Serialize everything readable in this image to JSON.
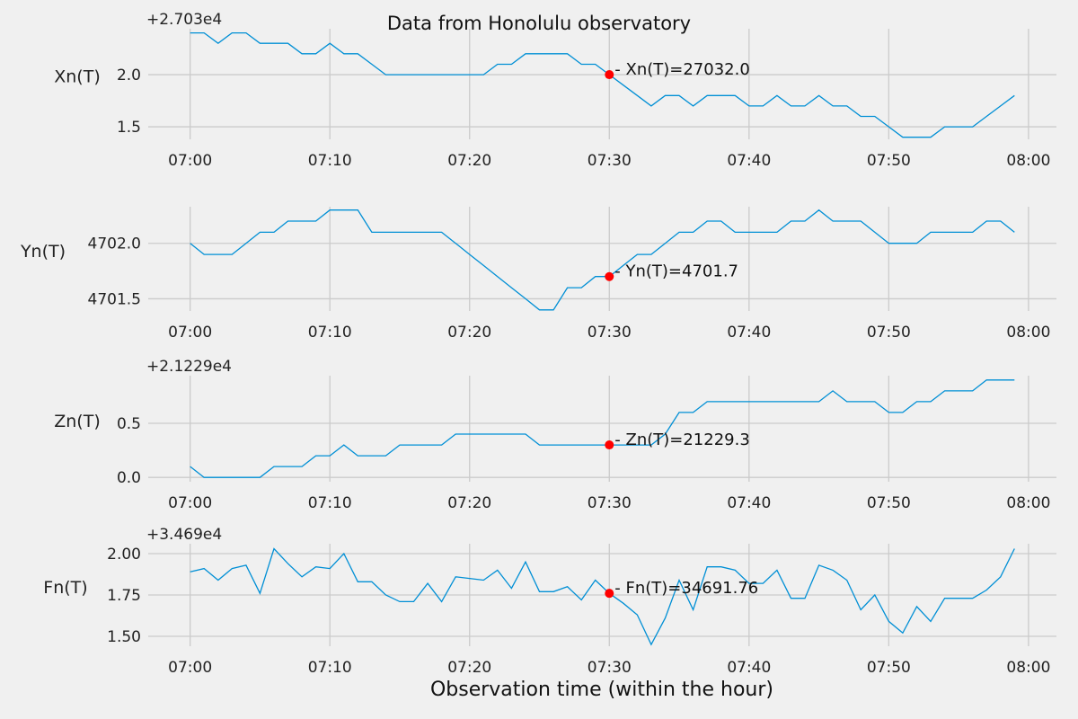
{
  "title": "Data from  Honolulu observatory",
  "chart_data": {
    "type": "line",
    "title": "Data from  Honolulu observatory",
    "xlabel": "Observation time (within the hour)",
    "x_unit": "minutes past 07:00",
    "x_ticks": [
      0,
      10,
      20,
      30,
      40,
      50,
      60
    ],
    "x_tick_labels": [
      "07:00",
      "07:10",
      "07:20",
      "07:30",
      "07:40",
      "07:50",
      "08:00"
    ],
    "xlim": [
      -3,
      62
    ],
    "x": [
      0,
      1,
      2,
      3,
      4,
      5,
      6,
      7,
      8,
      9,
      10,
      11,
      12,
      13,
      14,
      15,
      16,
      17,
      18,
      19,
      20,
      21,
      22,
      23,
      24,
      25,
      26,
      27,
      28,
      29,
      30,
      31,
      32,
      33,
      34,
      35,
      36,
      37,
      38,
      39,
      40,
      41,
      42,
      43,
      44,
      45,
      46,
      47,
      48,
      49,
      50,
      51,
      52,
      53,
      54,
      55,
      56,
      57,
      58,
      59
    ],
    "marker_x": 30,
    "grid": true,
    "panels": [
      {
        "ylabel": "Xn(T)",
        "offset_label": "+2.703e4",
        "offset": 27030,
        "ylim": [
          1.38,
          2.44
        ],
        "y_ticks": [
          1.5,
          2.0
        ],
        "y_tick_labels": [
          "1.5",
          "2.0"
        ],
        "values": [
          2.4,
          2.4,
          2.3,
          2.4,
          2.4,
          2.3,
          2.3,
          2.3,
          2.2,
          2.2,
          2.3,
          2.2,
          2.2,
          2.1,
          2.0,
          2.0,
          2.0,
          2.0,
          2.0,
          2.0,
          2.0,
          2.0,
          2.1,
          2.1,
          2.2,
          2.2,
          2.2,
          2.2,
          2.1,
          2.1,
          2.0,
          1.9,
          1.8,
          1.7,
          1.8,
          1.8,
          1.7,
          1.8,
          1.8,
          1.8,
          1.7,
          1.7,
          1.8,
          1.7,
          1.7,
          1.8,
          1.7,
          1.7,
          1.6,
          1.6,
          1.5,
          1.4,
          1.4,
          1.4,
          1.5,
          1.5,
          1.5,
          1.6,
          1.7,
          1.8
        ],
        "marker_value": 2.0,
        "annotation": "- Xn(T)=27032.0"
      },
      {
        "ylabel": "Yn(T)",
        "offset_label": "",
        "offset": 0,
        "ylim": [
          4701.39,
          4702.33
        ],
        "y_ticks": [
          4701.5,
          4702.0
        ],
        "y_tick_labels": [
          "4701.5",
          "4702.0"
        ],
        "values": [
          4702.0,
          4701.9,
          4701.9,
          4701.9,
          4702.0,
          4702.1,
          4702.1,
          4702.2,
          4702.2,
          4702.2,
          4702.3,
          4702.3,
          4702.3,
          4702.1,
          4702.1,
          4702.1,
          4702.1,
          4702.1,
          4702.1,
          4702.0,
          4701.9,
          4701.8,
          4701.7,
          4701.6,
          4701.5,
          4701.4,
          4701.4,
          4701.6,
          4701.6,
          4701.7,
          4701.7,
          4701.8,
          4701.9,
          4701.9,
          4702.0,
          4702.1,
          4702.1,
          4702.2,
          4702.2,
          4702.1,
          4702.1,
          4702.1,
          4702.1,
          4702.2,
          4702.2,
          4702.3,
          4702.2,
          4702.2,
          4702.2,
          4702.1,
          4702.0,
          4702.0,
          4702.0,
          4702.1,
          4702.1,
          4702.1,
          4702.1,
          4702.2,
          4702.2,
          4702.1
        ],
        "marker_value": 4701.7,
        "annotation": "- Yn(T)=4701.7"
      },
      {
        "ylabel": "Zn(T)",
        "offset_label": "+2.1229e4",
        "offset": 21229,
        "ylim": [
          -0.04,
          0.94
        ],
        "y_ticks": [
          0.0,
          0.5
        ],
        "y_tick_labels": [
          "0.0",
          "0.5"
        ],
        "values": [
          0.1,
          0.0,
          0.0,
          0.0,
          0.0,
          0.0,
          0.1,
          0.1,
          0.1,
          0.2,
          0.2,
          0.3,
          0.2,
          0.2,
          0.2,
          0.3,
          0.3,
          0.3,
          0.3,
          0.4,
          0.4,
          0.4,
          0.4,
          0.4,
          0.4,
          0.3,
          0.3,
          0.3,
          0.3,
          0.3,
          0.3,
          0.3,
          0.3,
          0.3,
          0.4,
          0.6,
          0.6,
          0.7,
          0.7,
          0.7,
          0.7,
          0.7,
          0.7,
          0.7,
          0.7,
          0.7,
          0.8,
          0.7,
          0.7,
          0.7,
          0.6,
          0.6,
          0.7,
          0.7,
          0.8,
          0.8,
          0.8,
          0.9,
          0.9,
          0.9
        ],
        "marker_value": 0.3,
        "annotation": "- Zn(T)=21229.3"
      },
      {
        "ylabel": "Fn(T)",
        "offset_label": "+3.469e4",
        "offset": 34690,
        "ylim": [
          1.44,
          2.06
        ],
        "y_ticks": [
          1.5,
          1.75,
          2.0
        ],
        "y_tick_labels": [
          "1.50",
          "1.75",
          "2.00"
        ],
        "values": [
          1.89,
          1.91,
          1.84,
          1.91,
          1.93,
          1.76,
          2.03,
          1.94,
          1.86,
          1.92,
          1.91,
          2.0,
          1.83,
          1.83,
          1.75,
          1.71,
          1.71,
          1.82,
          1.71,
          1.86,
          1.85,
          1.84,
          1.9,
          1.79,
          1.95,
          1.77,
          1.77,
          1.8,
          1.72,
          1.84,
          1.76,
          1.7,
          1.63,
          1.45,
          1.61,
          1.84,
          1.66,
          1.92,
          1.92,
          1.9,
          1.82,
          1.82,
          1.9,
          1.73,
          1.73,
          1.93,
          1.9,
          1.84,
          1.66,
          1.75,
          1.59,
          1.52,
          1.68,
          1.59,
          1.73,
          1.73,
          1.73,
          1.78,
          1.86,
          2.03
        ],
        "marker_value": 1.76,
        "annotation": "- Fn(T)=34691.76"
      }
    ]
  },
  "colors": {
    "background": "#f0f0f0",
    "line": "#008fd5",
    "marker": "#ff0000",
    "grid": "#cbcbcb"
  }
}
